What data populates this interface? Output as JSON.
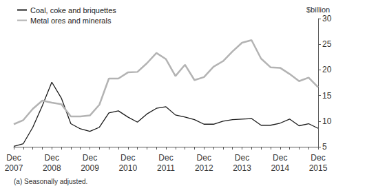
{
  "chart_data": {
    "type": "line",
    "y_label": "$billion",
    "footnote": "(a) Seasonally adjusted.",
    "categories": [
      "Dec\n2007",
      null,
      null,
      null,
      "Dec\n2008",
      null,
      null,
      null,
      "Dec\n2009",
      null,
      null,
      null,
      "Dec\n2010",
      null,
      null,
      null,
      "Dec\n2011",
      null,
      null,
      null,
      "Dec\n2012",
      null,
      null,
      null,
      "Dec\n2013",
      null,
      null,
      null,
      "Dec\n2014",
      null,
      null,
      null,
      "Dec\n2015"
    ],
    "series": [
      {
        "name": "Coal, coke and briquettes",
        "color": "#1a1a1a",
        "values": [
          5.1,
          5.6,
          8.8,
          13.0,
          17.6,
          14.5,
          9.5,
          8.5,
          8.0,
          8.8,
          11.6,
          12.0,
          10.8,
          9.8,
          11.4,
          12.5,
          12.8,
          11.2,
          10.8,
          10.3,
          9.4,
          9.4,
          10.0,
          10.3,
          10.4,
          10.5,
          9.2,
          9.2,
          9.6,
          10.4,
          9.1,
          9.5,
          8.6
        ]
      },
      {
        "name": "Metal ores and minerals",
        "color": "#b3b3b3",
        "values": [
          9.4,
          10.2,
          12.4,
          14.0,
          13.6,
          13.3,
          10.9,
          10.9,
          11.1,
          13.2,
          18.3,
          18.3,
          19.5,
          19.6,
          21.3,
          23.3,
          22.1,
          18.8,
          21.0,
          18.0,
          18.6,
          20.6,
          21.7,
          23.6,
          25.3,
          25.8,
          22.2,
          20.5,
          20.4,
          19.2,
          17.8,
          18.5,
          16.6
        ]
      }
    ],
    "ylim": [
      5,
      30
    ],
    "yticks": [
      5,
      10,
      15,
      20,
      25,
      30
    ],
    "grid": false,
    "legend": "top-left"
  }
}
